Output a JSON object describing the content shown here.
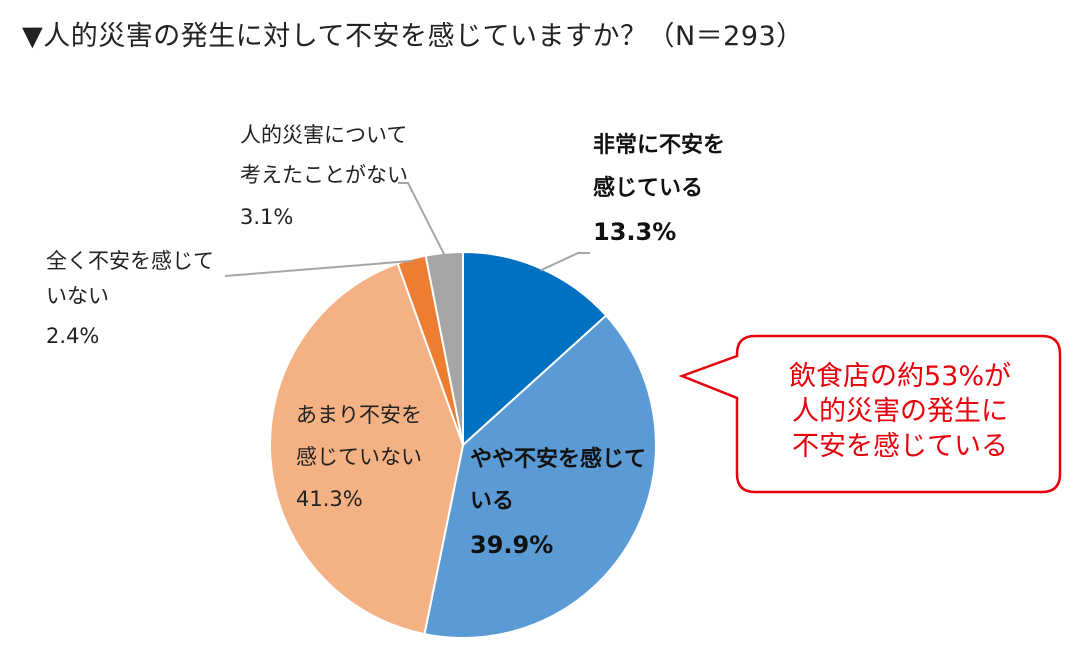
{
  "title": "▼人的災害の発生に対して不安を感じていますか？（N＝293）",
  "callout": {
    "lines": [
      "飲食店の約53%が",
      "人的災害の発生に",
      "不安を感じている"
    ],
    "color": "#e8000b"
  },
  "chart_data": {
    "type": "pie",
    "slices": [
      {
        "label_lines": [
          "非常に不安を",
          "感じている"
        ],
        "value_label": "13.3%",
        "value": 13.3,
        "color": "#0070c0"
      },
      {
        "label_lines": [
          "やや不安を感じて",
          "いる"
        ],
        "value_label": "39.9%",
        "value": 39.9,
        "color": "#5b9bd5"
      },
      {
        "label_lines": [
          "あまり不安を",
          "感じていない"
        ],
        "value_label": "41.3%",
        "value": 41.3,
        "color": "#f4b183"
      },
      {
        "label_lines": [
          "全く不安を感じて",
          "いない"
        ],
        "value_label": "2.4%",
        "value": 2.4,
        "color": "#ed7d31"
      },
      {
        "label_lines": [
          "人的災害について",
          "考えたことがない"
        ],
        "value_label": "3.1%",
        "value": 3.1,
        "color": "#a5a5a5"
      }
    ]
  }
}
